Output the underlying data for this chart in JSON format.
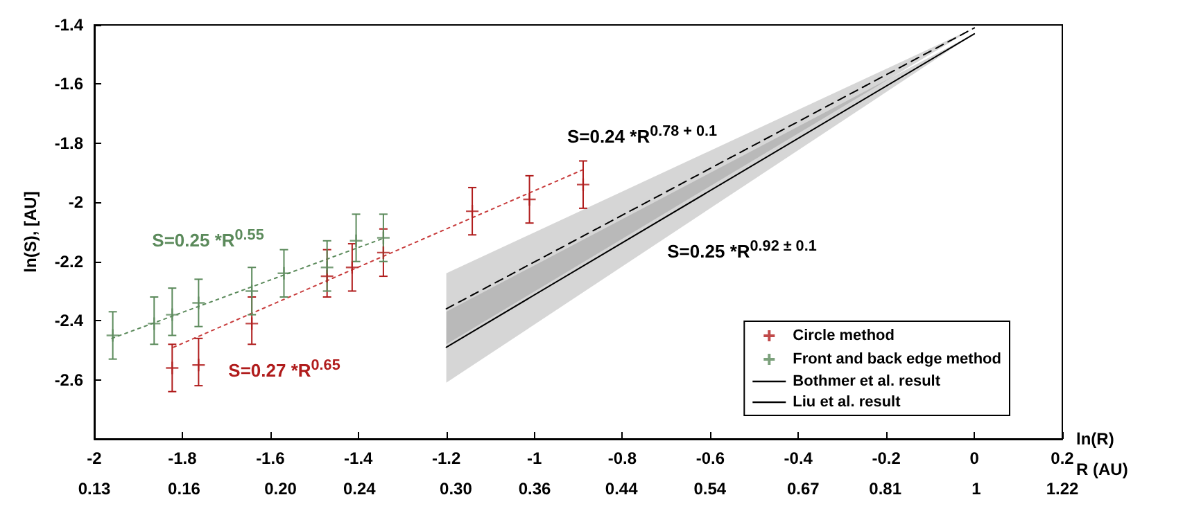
{
  "chart_data": {
    "type": "scatter",
    "xlabel": "ln(R)",
    "ylabel": "ln(S), [AU]",
    "x2label": "R (AU)",
    "marker": "cross",
    "legend": "bottom right",
    "xlim": [
      -2,
      0.2
    ],
    "xticks": [
      -2,
      -1.8,
      -1.6,
      -1.4,
      -1.2,
      -1,
      -0.8,
      -0.6,
      -0.4,
      -0.2,
      0,
      0.2
    ],
    "log": "x2",
    "x2lim": [
      0.13,
      1.22
    ],
    "x2ticks": [
      0.13,
      0.16,
      {
        "value": 0.2,
        "label": "0.20"
      },
      0.24,
      {
        "value": 0.3,
        "label": "0.30"
      },
      0.36,
      0.44,
      0.54,
      0.67,
      0.81,
      1,
      1.22
    ],
    "ylim": [
      -2.8,
      -1.4
    ],
    "yticks": [
      {
        "value": -2.8,
        "label": null
      },
      -2.6,
      -2.4,
      -2.2,
      -2,
      -1.8,
      -1.6,
      -1.4
    ],
    "series": [
      {
        "name": "Circle method",
        "color": "#b01c1c",
        "x": [
          -1.823,
          -1.763,
          -1.642,
          -1.471,
          -1.414,
          -1.343,
          -1.141,
          -1.011,
          -0.889
        ],
        "values": [
          -2.56,
          -2.55,
          -2.41,
          -2.25,
          -2.22,
          -2.17,
          -2.03,
          -1.99,
          -1.94
        ],
        "errors": [
          [
            -2.64,
            -2.48
          ],
          [
            -2.62,
            -2.46
          ],
          [
            -2.48,
            -2.32
          ],
          [
            -2.32,
            -2.16
          ],
          [
            -2.3,
            -2.14
          ],
          [
            -2.25,
            -2.09
          ],
          [
            -2.11,
            -1.95
          ],
          [
            -2.07,
            -1.91
          ],
          [
            -2.02,
            -1.86
          ]
        ]
      },
      {
        "name": "Front and back edge method",
        "color": "#5b8a5b",
        "x": [
          -1.958,
          -1.864,
          -1.823,
          -1.763,
          -1.642,
          -1.569,
          -1.471,
          -1.405,
          -1.343
        ],
        "values": [
          -2.45,
          -2.41,
          -2.38,
          -2.34,
          -2.3,
          -2.24,
          -2.22,
          -2.13,
          -2.12
        ],
        "errors": [
          [
            -2.53,
            -2.37
          ],
          [
            -2.48,
            -2.32
          ],
          [
            -2.45,
            -2.29
          ],
          [
            -2.42,
            -2.26
          ],
          [
            -2.38,
            -2.22
          ],
          [
            -2.32,
            -2.16
          ],
          [
            -2.3,
            -2.13
          ],
          [
            -2.2,
            -2.04
          ],
          [
            -2.2,
            -2.04
          ]
        ]
      },
      {
        "type": "line",
        "color": "#c83c3c",
        "x": [
          -1.82,
          -0.89
        ],
        "values": [
          -2.49,
          -1.89
        ],
        "line_style": "dotted",
        "marker": "none"
      },
      {
        "type": "line",
        "color": "#5b8a5b",
        "x": [
          -1.96,
          -1.34
        ],
        "values": [
          -2.46,
          -2.12
        ],
        "line_style": "dotted",
        "marker": "none"
      },
      {
        "name": "Bothmer et al. result",
        "type": "line",
        "color": "#000000",
        "x": [
          -1.2,
          0
        ],
        "values": [
          -2.36,
          -1.41
        ],
        "lower": [
          -2.48,
          -1.41
        ],
        "upper": [
          -2.24,
          -1.41
        ],
        "line_style": "dashed",
        "marker": "none"
      },
      {
        "name": "Liu et al. result",
        "type": "line",
        "color": "#000000",
        "x": [
          -1.2,
          0
        ],
        "values": [
          -2.49,
          -1.43
        ],
        "lower": [
          -2.61,
          -1.43
        ],
        "upper": [
          -2.37,
          -1.43
        ],
        "line_style": "solid",
        "marker": "none"
      }
    ],
    "annotations": [
      "S=0.25 *R$^{0.55}$",
      "S=0.27 *R$^{0.65}$",
      "S=0.24 *R$^{0.78 + 0.1}$",
      "S=0.25 *R$^{0.92 ± 0.1}$"
    ]
  }
}
